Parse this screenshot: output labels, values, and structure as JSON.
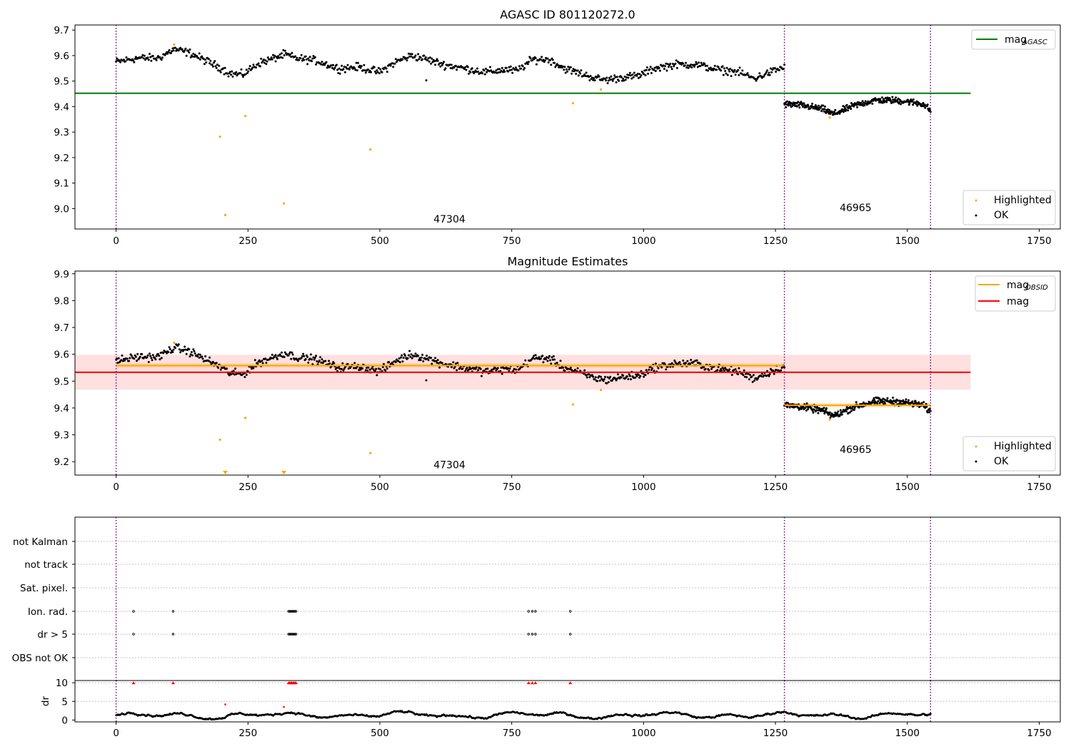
{
  "chart_data": [
    {
      "type": "scatter",
      "title": "AGASC ID 801120272.0",
      "xlim": [
        -78,
        1790
      ],
      "ylim": [
        8.92,
        9.72
      ],
      "xticks": [
        0,
        250,
        500,
        750,
        1000,
        1250,
        1500,
        1750
      ],
      "yticks": [
        9.0,
        9.1,
        9.2,
        9.3,
        9.4,
        9.5,
        9.6,
        9.7
      ],
      "ytick_labels": [
        "9.0",
        "9.1",
        "9.2",
        "9.3",
        "9.4",
        "9.5",
        "9.6",
        "9.7"
      ],
      "vlines": [
        0,
        1267,
        1544
      ],
      "hlines": [
        {
          "name": "mag_AGASC",
          "y": 9.452,
          "x0": -78,
          "x1": 1620,
          "color": "#008000"
        }
      ],
      "annotations": [
        {
          "text": "47304",
          "x": 632,
          "y": 8.945
        },
        {
          "text": "46965",
          "x": 1402,
          "y": 8.99
        }
      ],
      "ok_series": {
        "name": "OK",
        "color": "#000000",
        "segments": [
          {
            "x": [
              0,
              40,
              80,
              110,
              140,
              170,
              200,
              215,
              240,
              270,
              300,
              320,
              340,
              380,
              420,
              460,
              500,
              530,
              560,
              590,
              620,
              660,
              700,
              740,
              760,
              790,
              820,
              850,
              880,
              910,
              930,
              960,
              990,
              1020,
              1060,
              1100,
              1140,
              1180,
              1210,
              1240,
              1267
            ],
            "y": [
              9.575,
              9.59,
              9.59,
              9.625,
              9.61,
              9.58,
              9.55,
              9.53,
              9.525,
              9.57,
              9.59,
              9.605,
              9.59,
              9.58,
              9.55,
              9.555,
              9.535,
              9.575,
              9.6,
              9.585,
              9.565,
              9.55,
              9.535,
              9.545,
              9.54,
              9.585,
              9.585,
              9.55,
              9.53,
              9.51,
              9.505,
              9.515,
              9.52,
              9.55,
              9.565,
              9.565,
              9.545,
              9.535,
              9.51,
              9.535,
              9.555
            ],
            "n": 780,
            "jitter": 0.013
          },
          {
            "x": [
              1267,
              1300,
              1340,
              1360,
              1400,
              1440,
              1470,
              1500,
              1530,
              1544
            ],
            "y": [
              9.41,
              9.405,
              9.39,
              9.37,
              9.405,
              9.425,
              9.425,
              9.42,
              9.41,
              9.385
            ],
            "n": 300,
            "jitter": 0.011
          }
        ],
        "points": [
          [
            588,
            9.503
          ]
        ]
      },
      "highlighted_series": {
        "name": "Highlighted",
        "color": "#ffa500",
        "points": [
          [
            110,
            9.643
          ],
          [
            197,
            9.282
          ],
          [
            207,
            8.975
          ],
          [
            245,
            9.363
          ],
          [
            318,
            9.02
          ],
          [
            482,
            9.232
          ],
          [
            866,
            9.413
          ],
          [
            919,
            9.467
          ],
          [
            1353,
            9.357
          ]
        ]
      },
      "legend": {
        "upper": [
          {
            "label": "mag",
            "sub": "AGASC",
            "type": "line",
            "color": "#008000"
          }
        ],
        "lower": [
          {
            "label": "Highlighted",
            "type": "dot",
            "color": "#ffa500"
          },
          {
            "label": "OK",
            "type": "dot",
            "color": "#000000"
          }
        ]
      }
    },
    {
      "type": "scatter",
      "title": "Magnitude Estimates",
      "xlim": [
        -78,
        1790
      ],
      "ylim": [
        9.15,
        9.91
      ],
      "xticks": [
        0,
        250,
        500,
        750,
        1000,
        1250,
        1500,
        1750
      ],
      "yticks": [
        9.2,
        9.3,
        9.4,
        9.5,
        9.6,
        9.7,
        9.8,
        9.9
      ],
      "ytick_labels": [
        "9.2",
        "9.3",
        "9.4",
        "9.5",
        "9.6",
        "9.7",
        "9.8",
        "9.9"
      ],
      "vlines": [
        0,
        1267,
        1544
      ],
      "mag_band": {
        "y0": 9.468,
        "y1": 9.598,
        "x0": -78,
        "x1": 1620,
        "color": "#ff0000"
      },
      "hlines": [
        {
          "name": "mag",
          "y": 9.533,
          "x0": -78,
          "x1": 1620,
          "color": "#ff0000"
        },
        {
          "name": "mag_OBSID 47304",
          "y": 9.558,
          "x0": 0,
          "x1": 1267,
          "color": "#ffa500"
        },
        {
          "name": "mag_OBSID 46965",
          "y": 9.41,
          "x0": 1267,
          "x1": 1544,
          "color": "#ffa500"
        }
      ],
      "obsid_bands": [
        {
          "y0": 9.55,
          "y1": 9.566,
          "x0": 0,
          "x1": 1267
        },
        {
          "y0": 9.402,
          "y1": 9.418,
          "x0": 1267,
          "x1": 1544
        }
      ],
      "annotations": [
        {
          "text": "47304",
          "x": 632,
          "y": 9.175
        },
        {
          "text": "46965",
          "x": 1402,
          "y": 9.233
        }
      ],
      "ok_series": {
        "name": "OK",
        "color": "#000000",
        "segments": [
          {
            "x": [
              0,
              40,
              80,
              110,
              140,
              170,
              200,
              215,
              240,
              270,
              300,
              320,
              340,
              380,
              420,
              460,
              500,
              530,
              560,
              590,
              620,
              660,
              700,
              740,
              760,
              790,
              820,
              850,
              880,
              910,
              930,
              960,
              990,
              1020,
              1060,
              1100,
              1140,
              1180,
              1210,
              1240,
              1267
            ],
            "y": [
              9.575,
              9.59,
              9.59,
              9.625,
              9.61,
              9.58,
              9.55,
              9.53,
              9.525,
              9.57,
              9.59,
              9.605,
              9.59,
              9.58,
              9.55,
              9.555,
              9.535,
              9.575,
              9.6,
              9.585,
              9.565,
              9.55,
              9.535,
              9.545,
              9.54,
              9.585,
              9.585,
              9.55,
              9.53,
              9.51,
              9.505,
              9.515,
              9.52,
              9.55,
              9.565,
              9.565,
              9.545,
              9.535,
              9.51,
              9.535,
              9.555
            ],
            "n": 780,
            "jitter": 0.013
          },
          {
            "x": [
              1267,
              1300,
              1340,
              1360,
              1400,
              1440,
              1470,
              1500,
              1530,
              1544
            ],
            "y": [
              9.41,
              9.405,
              9.39,
              9.37,
              9.405,
              9.425,
              9.425,
              9.42,
              9.41,
              9.385
            ],
            "n": 300,
            "jitter": 0.011
          }
        ],
        "points": [
          [
            588,
            9.503
          ]
        ]
      },
      "highlighted_series": {
        "name": "Highlighted",
        "color": "#ffa500",
        "points": [
          [
            110,
            9.643
          ],
          [
            197,
            9.282
          ],
          [
            245,
            9.363
          ],
          [
            482,
            9.232
          ],
          [
            866,
            9.413
          ],
          [
            919,
            9.467
          ],
          [
            1353,
            9.357
          ]
        ],
        "below_range_markers": [
          [
            207,
            9.15
          ],
          [
            318,
            9.15
          ]
        ]
      },
      "legend": {
        "upper": [
          {
            "label": "mag",
            "sub": "OBSID",
            "type": "line",
            "color": "#ffa500"
          },
          {
            "label": "mag",
            "sub": "",
            "type": "line",
            "color": "#ff0000"
          }
        ],
        "lower": [
          {
            "label": "Highlighted",
            "type": "dot",
            "color": "#ffa500"
          },
          {
            "label": "OK",
            "type": "dot",
            "color": "#000000"
          }
        ]
      }
    },
    {
      "type": "scatter",
      "xlim": [
        -78,
        1790
      ],
      "vlines": [
        0,
        1267,
        1544
      ],
      "flag_rows": [
        "not Kalman",
        "not track",
        "Sat. pixel.",
        "Ion. rad.",
        "dr > 5",
        "OBS not OK"
      ],
      "flag_points": {
        "Ion. rad.": [
          33,
          108,
          327,
          329,
          331,
          333,
          335,
          337,
          339,
          341,
          782,
          789,
          795,
          861
        ],
        "dr > 5": [
          33,
          108,
          327,
          329,
          331,
          333,
          335,
          337,
          339,
          341,
          782,
          789,
          795,
          861
        ]
      }
    },
    {
      "type": "scatter",
      "ylabel": "dr",
      "xlim": [
        -78,
        1790
      ],
      "ylim": [
        -0.5,
        10.6
      ],
      "xticks": [
        0,
        250,
        500,
        750,
        1000,
        1250,
        1500,
        1750
      ],
      "yticks": [
        0,
        5,
        10
      ],
      "ytick_labels": [
        "0",
        "5",
        "10"
      ],
      "vlines": [
        0,
        1267,
        1544
      ],
      "dr_series": {
        "x_start": 0,
        "x_end": 1544,
        "n": 1090,
        "mean": 1.3,
        "amplitude": 0.9,
        "color": "#000000"
      },
      "outliers": {
        "color": "#ff0000",
        "points": [
          [
            33,
            10
          ],
          [
            108,
            10
          ],
          [
            327,
            10
          ],
          [
            329,
            10
          ],
          [
            331,
            10
          ],
          [
            333,
            10
          ],
          [
            335,
            10
          ],
          [
            337,
            10
          ],
          [
            339,
            10
          ],
          [
            341,
            10
          ],
          [
            782,
            10
          ],
          [
            789,
            10
          ],
          [
            795,
            10
          ],
          [
            861,
            10
          ],
          [
            207,
            4.2
          ],
          [
            318,
            3.5
          ]
        ]
      }
    }
  ]
}
